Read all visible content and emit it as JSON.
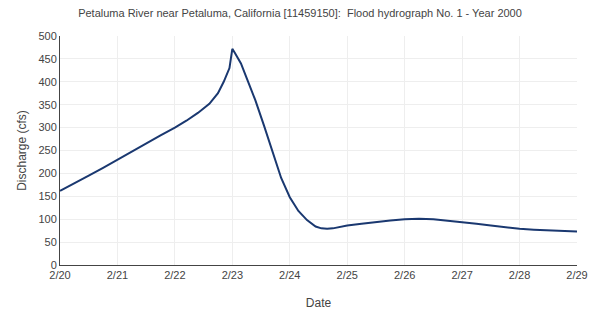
{
  "chart_data": {
    "type": "line",
    "title": "Petaluma River near Petaluma, California [11459150]:  Flood hydrograph No. 1 - Year 2000",
    "xlabel": "Date",
    "ylabel": "Discharge (cfs)",
    "color": "#1a3870",
    "grid": true,
    "xlim": [
      0,
      9
    ],
    "ylim": [
      0,
      500
    ],
    "xticks": [
      {
        "value": 0,
        "label": "2/20"
      },
      {
        "value": 1,
        "label": "2/21"
      },
      {
        "value": 2,
        "label": "2/22"
      },
      {
        "value": 3,
        "label": "2/23"
      },
      {
        "value": 4,
        "label": "2/24"
      },
      {
        "value": 5,
        "label": "2/25"
      },
      {
        "value": 6,
        "label": "2/26"
      },
      {
        "value": 7,
        "label": "2/27"
      },
      {
        "value": 8,
        "label": "2/28"
      },
      {
        "value": 9,
        "label": "2/29"
      }
    ],
    "yticks": [
      0,
      50,
      100,
      150,
      200,
      250,
      300,
      350,
      400,
      450,
      500
    ],
    "x": [
      0.0,
      0.25,
      0.5,
      0.75,
      1.0,
      1.25,
      1.5,
      1.75,
      2.0,
      2.2,
      2.4,
      2.6,
      2.75,
      2.85,
      2.95,
      3.0,
      3.05,
      3.15,
      3.25,
      3.4,
      3.55,
      3.7,
      3.85,
      4.0,
      4.15,
      4.3,
      4.45,
      4.55,
      4.65,
      4.75,
      5.0,
      5.25,
      5.5,
      5.75,
      6.0,
      6.25,
      6.5,
      6.75,
      7.0,
      7.25,
      7.5,
      7.75,
      8.0,
      8.25,
      8.5,
      8.75,
      9.0
    ],
    "values": [
      162,
      178,
      195,
      212,
      230,
      248,
      265,
      283,
      300,
      315,
      332,
      352,
      375,
      400,
      430,
      472,
      462,
      440,
      408,
      360,
      305,
      245,
      190,
      148,
      118,
      98,
      84,
      80,
      79,
      80,
      86,
      90,
      94,
      97,
      100,
      101,
      100,
      97,
      94,
      90,
      86,
      82,
      79,
      77,
      76,
      74,
      73
    ]
  }
}
